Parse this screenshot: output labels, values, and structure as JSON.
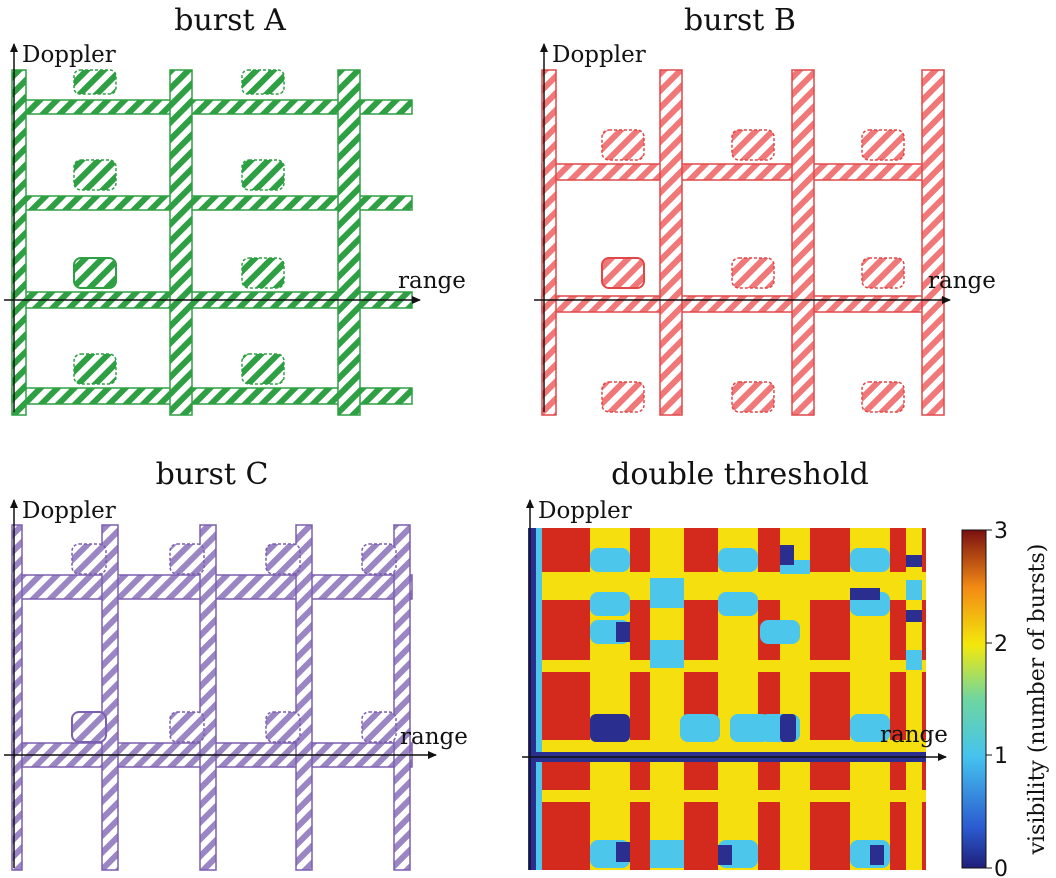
{
  "panels": [
    {
      "id": "A",
      "title": "burst A",
      "x_label": "range",
      "y_label": "Doppler",
      "color": "#2ea043"
    },
    {
      "id": "B",
      "title": "burst B",
      "x_label": "range",
      "y_label": "Doppler",
      "color": "#f07878"
    },
    {
      "id": "C",
      "title": "burst C",
      "x_label": "range",
      "y_label": "Doppler",
      "color": "#9b86c4"
    },
    {
      "id": "D",
      "title": "double threshold",
      "x_label": "range",
      "y_label": "Doppler"
    }
  ],
  "colorbar": {
    "label": "visibility (number of bursts)",
    "ticks": [
      "0",
      "1",
      "2",
      "3"
    ],
    "range": [
      0,
      3
    ],
    "colors": {
      "0": "#2a2f8f",
      "1": "#4cc6ea",
      "2": "#f5df0e",
      "3": "#d42a1e"
    }
  }
}
